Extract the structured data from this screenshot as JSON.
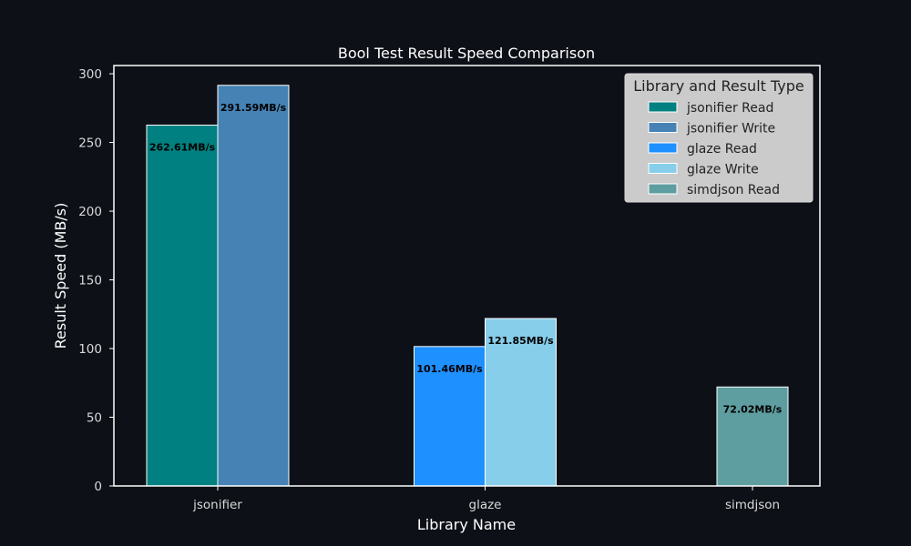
{
  "chart_data": {
    "type": "bar",
    "title": "Bool Test Result Speed Comparison",
    "xlabel": "Library Name",
    "ylabel": "Result Speed (MB/s)",
    "ylim": [
      0,
      306
    ],
    "yticks": [
      0,
      50,
      100,
      150,
      200,
      250,
      300
    ],
    "categories": [
      "jsonifier",
      "glaze",
      "simdjson"
    ],
    "grid": false,
    "legend_title": "Library and Result Type",
    "legend_position": "top-right",
    "bars": [
      {
        "category": "jsonifier",
        "series": "jsonifier Read",
        "value": 262.61,
        "label": "262.61MB/s",
        "color": "#008080"
      },
      {
        "category": "jsonifier",
        "series": "jsonifier Write",
        "value": 291.59,
        "label": "291.59MB/s",
        "color": "#4682b4"
      },
      {
        "category": "glaze",
        "series": "glaze Read",
        "value": 101.46,
        "label": "101.46MB/s",
        "color": "#1e90ff"
      },
      {
        "category": "glaze",
        "series": "glaze Write",
        "value": 121.85,
        "label": "121.85MB/s",
        "color": "#87ceeb"
      },
      {
        "category": "simdjson",
        "series": "simdjson Read",
        "value": 72.02,
        "label": "72.02MB/s",
        "color": "#5f9ea0"
      }
    ],
    "legend": [
      {
        "name": "jsonifier Read",
        "color": "#008080"
      },
      {
        "name": "jsonifier Write",
        "color": "#4682b4"
      },
      {
        "name": "glaze Read",
        "color": "#1e90ff"
      },
      {
        "name": "glaze Write",
        "color": "#87ceeb"
      },
      {
        "name": "simdjson Read",
        "color": "#5f9ea0"
      }
    ],
    "colors": {
      "background": "#0d1017",
      "axes": "#ffffff",
      "legend_bg": "#cccccc"
    }
  }
}
